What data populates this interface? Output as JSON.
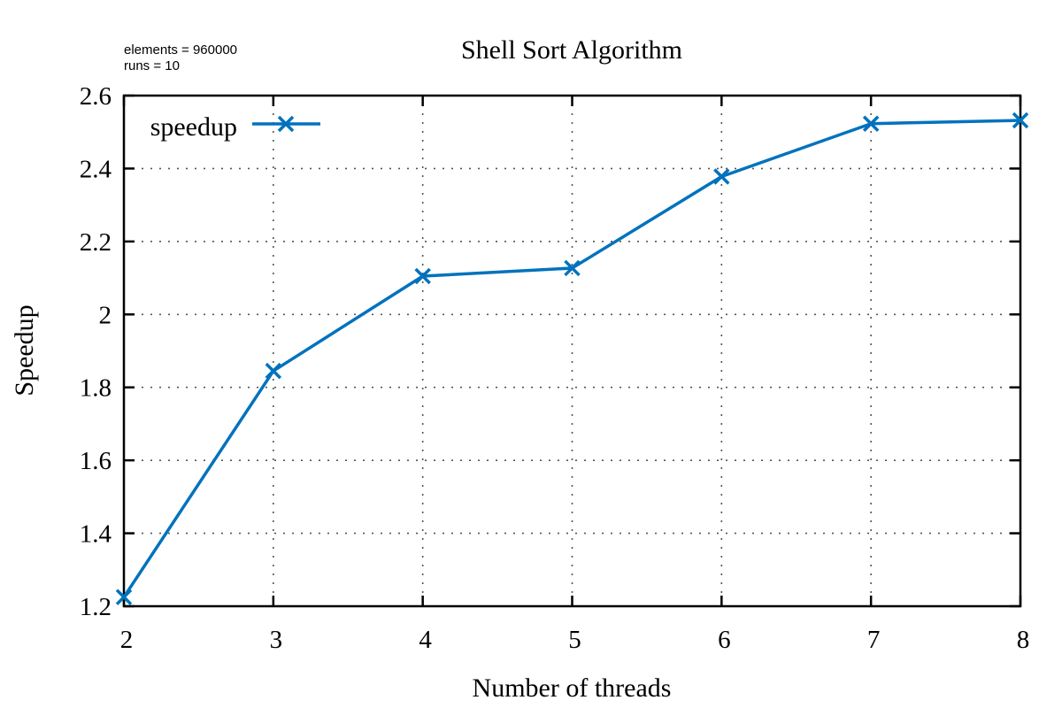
{
  "chart_data": {
    "type": "line",
    "title": "Shell Sort Algorithm",
    "annotations": [
      "elements = 960000",
      "runs = 10"
    ],
    "xlabel": "Number of threads",
    "ylabel": "Speedup",
    "xlim": [
      2,
      8
    ],
    "ylim": [
      1.2,
      2.6
    ],
    "x_ticks": [
      2,
      3,
      4,
      5,
      6,
      7,
      8
    ],
    "y_ticks": [
      1.2,
      1.4,
      1.6,
      1.8,
      2,
      2.2,
      2.4,
      2.6
    ],
    "grid": true,
    "legend_position": "top-left",
    "series": [
      {
        "name": "speedup",
        "color": "#0072bd",
        "marker": "x",
        "x": [
          2,
          3,
          4,
          5,
          6,
          7,
          8
        ],
        "y": [
          1.225,
          1.845,
          2.105,
          2.127,
          2.378,
          2.523,
          2.532
        ]
      }
    ]
  }
}
